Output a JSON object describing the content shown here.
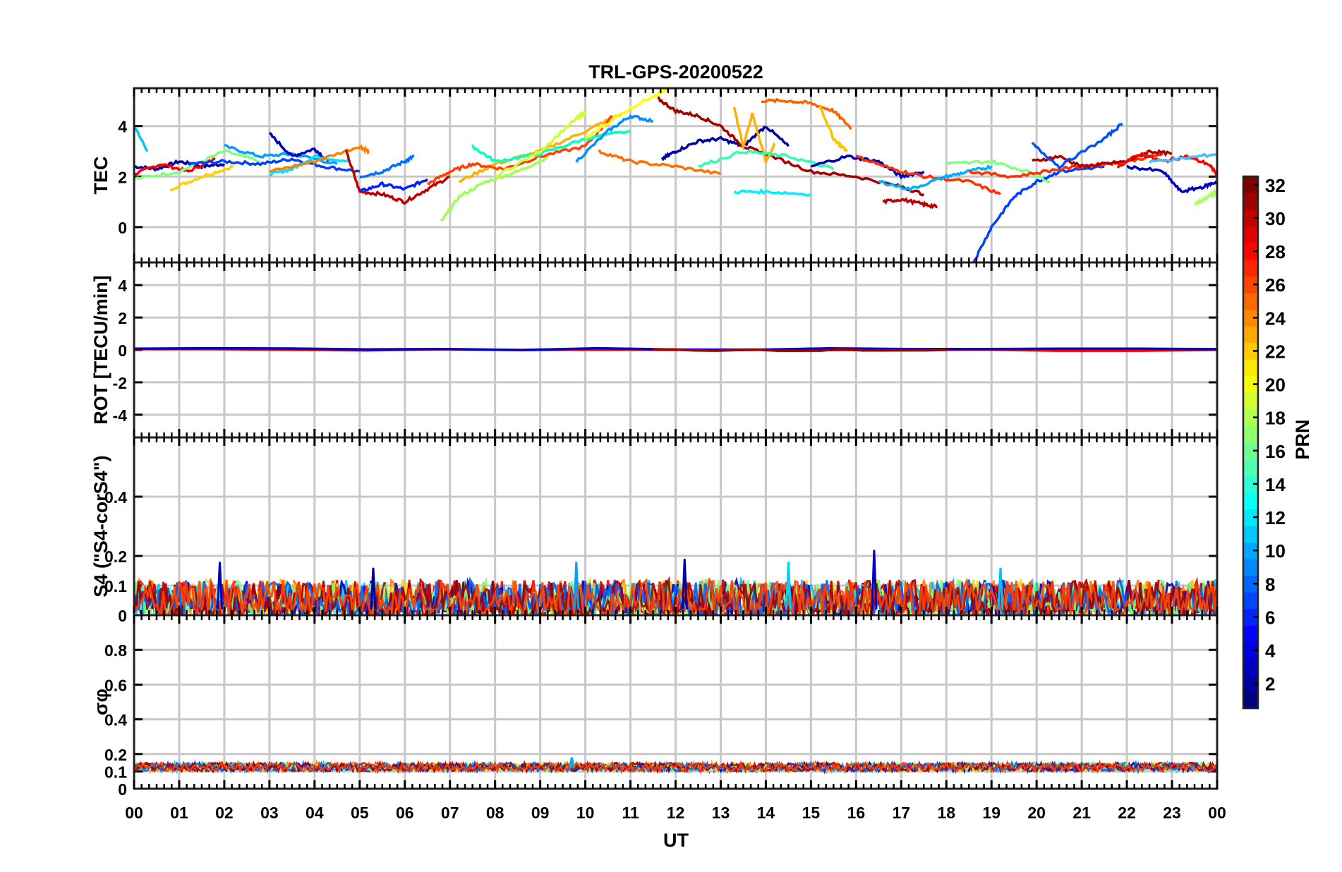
{
  "figure": {
    "title": "TRL-GPS-20200522",
    "xlabel": "UT",
    "x_ticks": [
      "00",
      "01",
      "02",
      "03",
      "04",
      "05",
      "06",
      "07",
      "08",
      "09",
      "10",
      "11",
      "12",
      "13",
      "14",
      "15",
      "16",
      "17",
      "18",
      "19",
      "20",
      "21",
      "22",
      "23",
      "00"
    ]
  },
  "colorbar": {
    "label": "PRN",
    "range": [
      1,
      32
    ],
    "ticks": [
      "2",
      "4",
      "6",
      "8",
      "10",
      "12",
      "14",
      "16",
      "18",
      "20",
      "22",
      "24",
      "26",
      "28",
      "30",
      "32"
    ]
  },
  "chart_data": [
    {
      "type": "line",
      "ylabel": "TEC",
      "ylim": [
        -1.4,
        5.5
      ],
      "yticks": [
        "0",
        "2",
        "4"
      ],
      "xlim": [
        0,
        24
      ],
      "x_unit": "UT hours",
      "grid": true,
      "series": [
        {
          "color": "#0000a0",
          "x": [
            0,
            0.5,
            1,
            1.5,
            2
          ],
          "y": [
            2.4,
            2.3,
            2.6,
            2.4,
            2.5
          ]
        },
        {
          "color": "#00c8ff",
          "x": [
            0,
            0.3
          ],
          "y": [
            4.0,
            3.0
          ]
        },
        {
          "color": "#ff0000",
          "x": [
            0,
            0.6,
            1.2,
            1.8
          ],
          "y": [
            2.1,
            2.5,
            2.2,
            2.7
          ]
        },
        {
          "color": "#ffd000",
          "x": [
            0.8,
            1.5,
            2.2
          ],
          "y": [
            1.5,
            2.0,
            2.4
          ]
        },
        {
          "color": "#80ff80",
          "x": [
            0,
            1,
            2,
            2.8
          ],
          "y": [
            1.9,
            2.2,
            3.0,
            2.6
          ]
        },
        {
          "color": "#0040ff",
          "x": [
            1.2,
            2,
            2.8,
            3.5,
            4.2,
            5
          ],
          "y": [
            2.5,
            2.6,
            2.5,
            2.7,
            2.4,
            2.2
          ]
        },
        {
          "color": "#00a0ff",
          "x": [
            2,
            2.8,
            3.5,
            4.5
          ],
          "y": [
            3.2,
            2.8,
            2.9,
            2.5
          ]
        },
        {
          "color": "#0000c0",
          "x": [
            3,
            3.5,
            4,
            4.3
          ],
          "y": [
            3.7,
            2.8,
            3.1,
            2.6
          ]
        },
        {
          "color": "#00e0ff",
          "x": [
            3,
            3.5,
            4,
            4.8
          ],
          "y": [
            2.1,
            2.3,
            2.8,
            2.6
          ]
        },
        {
          "color": "#ff8000",
          "x": [
            3,
            4,
            5,
            5.2
          ],
          "y": [
            2.2,
            2.6,
            3.2,
            3.0
          ]
        },
        {
          "color": "#c00000",
          "x": [
            4.7,
            5,
            5.5,
            6,
            6.5,
            7
          ],
          "y": [
            3.0,
            1.4,
            1.3,
            1.0,
            1.5,
            2.0
          ]
        },
        {
          "color": "#0020ff",
          "x": [
            5,
            5.5,
            6,
            6.5
          ],
          "y": [
            1.4,
            1.7,
            1.5,
            1.9
          ]
        },
        {
          "color": "#0070ff",
          "x": [
            5,
            5.5,
            6,
            6.2
          ],
          "y": [
            2.0,
            2.2,
            2.6,
            2.8
          ]
        },
        {
          "color": "#a0ff50",
          "x": [
            6.8,
            7.2,
            7.8,
            8.5,
            9.2
          ],
          "y": [
            0.2,
            1.2,
            1.8,
            2.2,
            2.8
          ]
        },
        {
          "color": "#ffb000",
          "x": [
            7.2,
            8,
            9,
            10,
            10.8
          ],
          "y": [
            1.8,
            2.5,
            3.0,
            3.8,
            4.5
          ]
        },
        {
          "color": "#ff4000",
          "x": [
            6.5,
            7,
            7.5,
            8.2,
            9,
            10,
            10.6
          ],
          "y": [
            1.7,
            2.2,
            2.5,
            2.3,
            2.8,
            3.2,
            4.4
          ]
        },
        {
          "color": "#00ffc0",
          "x": [
            7.5,
            8,
            9,
            10,
            11
          ],
          "y": [
            3.2,
            2.6,
            2.9,
            3.5,
            3.8
          ]
        },
        {
          "color": "#d0ff30",
          "x": [
            8,
            9,
            9.8,
            10
          ],
          "y": [
            2.0,
            3.0,
            4.3,
            4.5
          ]
        },
        {
          "color": "#0090ff",
          "x": [
            9.8,
            10.5,
            11,
            11.5
          ],
          "y": [
            2.6,
            3.8,
            4.4,
            4.2
          ]
        },
        {
          "color": "#ff7000",
          "x": [
            10.3,
            11,
            12,
            13
          ],
          "y": [
            3.0,
            2.6,
            2.4,
            2.1
          ]
        },
        {
          "color": "#ffff00",
          "x": [
            10,
            10.8,
            11.5,
            11.9
          ],
          "y": [
            3.5,
            4.5,
            5.2,
            5.5
          ]
        },
        {
          "color": "#0000a0",
          "x": [
            11.7,
            12,
            12.5,
            13,
            13.5,
            14,
            14.5
          ],
          "y": [
            2.7,
            3.0,
            3.4,
            3.5,
            3.2,
            4.0,
            3.2
          ]
        },
        {
          "color": "#a00000",
          "x": [
            11.6,
            12,
            12.5,
            13,
            13.5,
            14,
            15,
            16,
            17,
            17.5
          ],
          "y": [
            5.1,
            4.6,
            4.4,
            4.0,
            3.2,
            2.9,
            2.2,
            2.0,
            1.6,
            1.3
          ]
        },
        {
          "color": "#ffb000",
          "x": [
            13.3,
            13.5,
            13.7,
            14,
            14.2
          ],
          "y": [
            4.7,
            3.2,
            4.5,
            2.6,
            3.3
          ]
        },
        {
          "color": "#ff6000",
          "x": [
            13.9,
            14.5,
            15,
            15.5,
            15.9
          ],
          "y": [
            5.0,
            5.0,
            4.9,
            4.6,
            3.9
          ]
        },
        {
          "color": "#ffc000",
          "x": [
            15.2,
            15.5,
            15.8
          ],
          "y": [
            4.8,
            3.5,
            3.0
          ]
        },
        {
          "color": "#00f0ff",
          "x": [
            13.3,
            14,
            15
          ],
          "y": [
            1.4,
            1.4,
            1.3
          ]
        },
        {
          "color": "#30ffb0",
          "x": [
            12.5,
            13.5,
            14.5,
            15.5
          ],
          "y": [
            2.4,
            3.0,
            2.8,
            2.3
          ]
        },
        {
          "color": "#0000c0",
          "x": [
            15,
            15.8,
            16.5,
            17,
            17.5
          ],
          "y": [
            2.4,
            2.8,
            2.6,
            2.0,
            2.2
          ]
        },
        {
          "color": "#ff3000",
          "x": [
            16,
            16.8,
            17.5,
            18.5,
            19.2
          ],
          "y": [
            2.8,
            2.3,
            2.0,
            1.8,
            1.3
          ]
        },
        {
          "color": "#c00000",
          "x": [
            16.6,
            17,
            17.5,
            17.8
          ],
          "y": [
            1.0,
            1.1,
            0.9,
            0.8
          ]
        },
        {
          "color": "#00b0ff",
          "x": [
            16.5,
            17.2,
            18,
            18.5,
            19
          ],
          "y": [
            1.8,
            1.5,
            2.0,
            2.2,
            2.4
          ]
        },
        {
          "color": "#0040ff",
          "x": [
            18.6,
            19,
            19.5,
            20,
            20.5,
            21.5
          ],
          "y": [
            -1.4,
            0.0,
            1.2,
            1.8,
            2.2,
            2.4
          ]
        },
        {
          "color": "#80ff80",
          "x": [
            18,
            19,
            19.8,
            20.3
          ],
          "y": [
            2.5,
            2.6,
            2.2,
            1.8
          ]
        },
        {
          "color": "#ff3000",
          "x": [
            18.5,
            19.5,
            20.5,
            21.5,
            22,
            22.8
          ],
          "y": [
            2.2,
            2.0,
            2.3,
            2.5,
            2.6,
            2.9
          ]
        },
        {
          "color": "#b00000",
          "x": [
            19.9,
            20.5,
            21,
            21.5,
            22,
            22.5,
            23
          ],
          "y": [
            2.6,
            2.8,
            2.4,
            2.5,
            2.6,
            3.0,
            2.9
          ]
        },
        {
          "color": "#0050ff",
          "x": [
            19.9,
            20.5,
            21.5,
            21.9
          ],
          "y": [
            3.3,
            2.4,
            3.5,
            4.1
          ]
        },
        {
          "color": "#ff0000",
          "x": [
            21.8,
            22.3,
            22.8,
            23.3,
            23.8,
            24
          ],
          "y": [
            2.4,
            2.9,
            2.6,
            2.8,
            2.5,
            2.1
          ]
        },
        {
          "color": "#0000c0",
          "x": [
            22,
            22.8,
            23.2,
            23.7,
            24
          ],
          "y": [
            2.4,
            2.2,
            1.4,
            1.6,
            1.8
          ]
        },
        {
          "color": "#40c0ff",
          "x": [
            22.5,
            23.2,
            24
          ],
          "y": [
            2.6,
            2.7,
            2.9
          ]
        },
        {
          "color": "#b0ff60",
          "x": [
            23.5,
            23.8,
            24
          ],
          "y": [
            0.9,
            1.2,
            1.4
          ]
        }
      ]
    },
    {
      "type": "line",
      "ylabel": "ROT [TECU/min]",
      "ylim": [
        -5.4,
        5.4
      ],
      "yticks": [
        "-4",
        "-2",
        "0",
        "2",
        "4"
      ],
      "xlim": [
        0,
        24
      ],
      "grid": true,
      "series": [
        {
          "color": "#ff0000",
          "x": [
            0,
            24
          ],
          "y": [
            0.0,
            0.0
          ]
        },
        {
          "color": "#0000c0",
          "x": [
            0,
            24
          ],
          "y": [
            0.05,
            0.05
          ]
        },
        {
          "color": "#a00000",
          "x": [
            11.5,
            18
          ],
          "y": [
            0.0,
            0.0
          ]
        }
      ]
    },
    {
      "type": "line",
      "ylabel": "S4 (\"S4-corS4\")",
      "ylim": [
        0,
        0.6
      ],
      "yticks": [
        "0",
        "0.1",
        "0.2",
        "0.4"
      ],
      "xlim": [
        0,
        24
      ],
      "grid": true,
      "typical_range": [
        0.0,
        0.12
      ],
      "spikes": [
        {
          "x": 1.9,
          "y": 0.18,
          "color": "#0000c0"
        },
        {
          "x": 5.3,
          "y": 0.16,
          "color": "#0000a0"
        },
        {
          "x": 9.8,
          "y": 0.18,
          "color": "#00a0ff"
        },
        {
          "x": 12.2,
          "y": 0.19,
          "color": "#0000a0"
        },
        {
          "x": 14.5,
          "y": 0.18,
          "color": "#00d0ff"
        },
        {
          "x": 16.4,
          "y": 0.22,
          "color": "#0000c0"
        },
        {
          "x": 19.2,
          "y": 0.16,
          "color": "#00c0ff"
        }
      ]
    },
    {
      "type": "line",
      "ylabel": "σφ",
      "ylim": [
        0,
        1.0
      ],
      "yticks": [
        "0",
        "0.1",
        "0.2",
        "0.4",
        "0.6",
        "0.8"
      ],
      "xlim": [
        0,
        24
      ],
      "grid": true,
      "typical_range": [
        0.1,
        0.15
      ],
      "spikes": [
        {
          "x": 9.7,
          "y": 0.18,
          "color": "#00b0ff"
        }
      ]
    }
  ]
}
